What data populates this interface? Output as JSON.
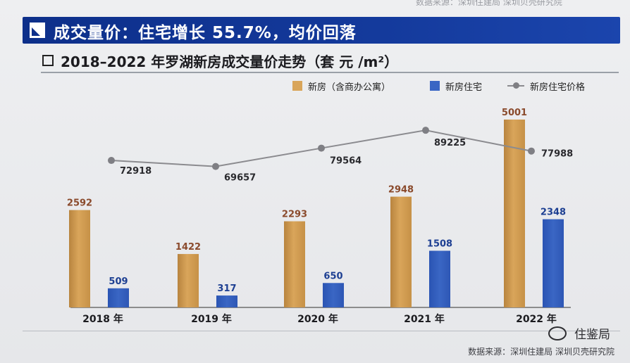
{
  "page": {
    "header_fragment": "数据来源：深圳住建局 深圳贝壳研究院",
    "banner_title": "成交量价：住宅增长 55.7%，均价回落",
    "source": "数据来源：深圳住建局    深圳贝壳研究院",
    "watermark": "住鉴局"
  },
  "colors": {
    "banner": "#0d2f8a",
    "bar_new_house": "#d9a55a",
    "bar_residential": "#3a66c4",
    "line_price": "#8b8b8f",
    "label_new_house": "#8a4a2c",
    "label_residential": "#1d3f92"
  },
  "chart_data": {
    "type": "bar",
    "title": "2018–2022 年罗湖新房成交量价走势（套 元 /m²）",
    "categories": [
      "2018 年",
      "2019 年",
      "2020 年",
      "2021 年",
      "2022 年"
    ],
    "series": [
      {
        "name": "新房（含商办公寓）",
        "type": "bar",
        "values": [
          2592,
          1422,
          2293,
          2948,
          5001
        ]
      },
      {
        "name": "新房住宅",
        "type": "bar",
        "values": [
          509,
          317,
          650,
          1508,
          2348
        ]
      },
      {
        "name": "新房住宅价格",
        "type": "line",
        "values": [
          72918,
          69657,
          79564,
          89225,
          77988
        ]
      }
    ],
    "legend_position": "top-right",
    "grid": false
  }
}
